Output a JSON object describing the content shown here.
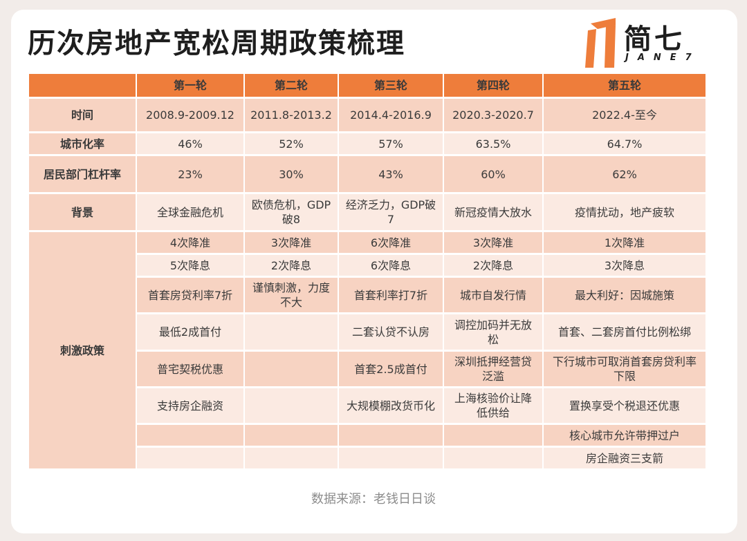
{
  "title": "历次房地产宽松周期政策梳理",
  "logo": {
    "text": "简七",
    "sub": "JANE7",
    "brand_color": "#ee7d3b"
  },
  "colors": {
    "header": "#ee7d3b",
    "row_dark": "#f7d3c2",
    "row_light": "#fbeae2"
  },
  "table": {
    "columns": [
      "",
      "第一轮",
      "第二轮",
      "第三轮",
      "第四轮",
      "第五轮"
    ],
    "rows": [
      {
        "label": "时间",
        "cells": [
          "2008.9-2009.12",
          "2011.8-2013.2",
          "2014.4-2016.9",
          "2020.3-2020.7",
          "2022.4-至今"
        ]
      },
      {
        "label": "城市化率",
        "cells": [
          "46%",
          "52%",
          "57%",
          "63.5%",
          "64.7%"
        ]
      },
      {
        "label": "居民部门杠杆率",
        "cells": [
          "23%",
          "30%",
          "43%",
          "60%",
          "62%"
        ]
      },
      {
        "label": "背景",
        "cells": [
          "全球金融危机",
          "欧债危机，GDP破8",
          "经济乏力，GDP破7",
          "新冠疫情大放水",
          "疫情扰动，地产疲软"
        ]
      }
    ],
    "policy_label": "刺激政策",
    "policy_rows": [
      [
        "4次降准",
        "3次降准",
        "6次降准",
        "3次降准",
        "1次降准"
      ],
      [
        "5次降息",
        "2次降息",
        "6次降息",
        "2次降息",
        "3次降息"
      ],
      [
        "首套房贷利率7折",
        "谨慎刺激，力度不大",
        "首套利率打7折",
        "城市自发行情",
        "最大利好：因城施策"
      ],
      [
        "最低2成首付",
        "",
        "二套认贷不认房",
        "调控加码并无放松",
        "首套、二套房首付比例松绑"
      ],
      [
        "普宅契税优惠",
        "",
        "首套2.5成首付",
        "深圳抵押经营贷泛滥",
        "下行城市可取消首套房贷利率下限"
      ],
      [
        "支持房企融资",
        "",
        "大规模棚改货币化",
        "上海核验价让降低供给",
        "置换享受个税退还优惠"
      ],
      [
        "",
        "",
        "",
        "",
        "核心城市允许带押过户"
      ],
      [
        "",
        "",
        "",
        "",
        "房企融资三支箭"
      ]
    ]
  },
  "source": "数据来源：老钱日日谈"
}
